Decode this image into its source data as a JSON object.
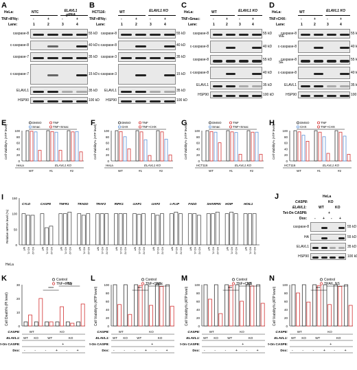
{
  "panels": {
    "A": {
      "letter": "A",
      "cell": "HeLa:",
      "groups": [
        "NTC",
        "ELAVL1 gRNA"
      ],
      "treat": "TNF+IFNγ:",
      "signs": [
        "-",
        "+",
        "-",
        "+"
      ],
      "lane_label": "Lane:",
      "lanes": [
        "1",
        "2",
        "3",
        "4"
      ],
      "rows": [
        "caspase-8",
        "c-caspase-8",
        "caspase-7",
        "c-caspase-7",
        "ELAVL1",
        "HSP90"
      ],
      "markers": [
        "55 kD",
        "40 kD",
        "35 kD",
        "15 kD",
        "35 kD",
        "100 kD"
      ]
    },
    "B": {
      "letter": "B",
      "cell": "HCT116:",
      "groups": [
        "WT",
        "ELAVL1 KO"
      ],
      "treat": "TNF+IFNγ:",
      "signs": [
        "-",
        "+",
        "-",
        "+"
      ],
      "lane_label": "Lane:",
      "lanes": [
        "1",
        "2",
        "3",
        "4"
      ],
      "rows": [
        "caspase-8",
        "c-caspase-8",
        "caspase-3",
        "c-caspase-3",
        "ELAVL1",
        "HSP90"
      ],
      "markers": [
        "55 kD",
        "40 kD",
        "35 kD",
        "15 kD",
        "35 kD",
        "100 kD"
      ]
    },
    "C": {
      "letter": "C",
      "cell": "HeLa:",
      "groups": [
        "WT",
        "ELAVL1 KO"
      ],
      "treat": "TNF+Smac:",
      "signs": [
        "-",
        "+",
        "-",
        "+"
      ],
      "lane_label": "Lane:",
      "lanes": [
        "1",
        "2",
        "3",
        "4"
      ],
      "rows": [
        "caspase-8",
        "c-caspase-8",
        "caspase-8",
        "c-caspase-8",
        "ELAVL1",
        "HSP90"
      ],
      "markers": [
        "55 kD",
        "40 kD",
        "55 kD",
        "40 kD",
        "35 kD",
        "100 kD"
      ],
      "exposures": [
        "WE",
        "SE"
      ]
    },
    "D": {
      "letter": "D",
      "cell": "HeLa:",
      "groups": [
        "WT",
        "ELAVL1 KO"
      ],
      "treat": "TNF+CHX:",
      "signs": [
        "-",
        "+",
        "-",
        "+"
      ],
      "lane_label": "Lane:",
      "lanes": [
        "1",
        "2",
        "3",
        "4"
      ],
      "rows": [
        "caspase-8",
        "c-caspase-8",
        "caspase-8",
        "c-caspase-8",
        "ELAVL1",
        "HSP90"
      ],
      "markers": [
        "55 kD",
        "40 kD",
        "55 kD",
        "40 kD",
        "35 kD",
        "100 kD"
      ],
      "exposures": [
        "WE",
        "SE"
      ]
    },
    "E": {
      "letter": "E",
      "ylabel": "Cell Viability% (ATP level)",
      "yticks": [
        "100",
        "80",
        "60",
        "40",
        "20",
        "0"
      ],
      "legend": [
        "DMSO",
        "TNF",
        "Smac",
        "TNF+Smac"
      ],
      "cell": "HeLa",
      "cond": [
        "WT",
        "#1",
        "#2"
      ],
      "ko": "ELAVL1 KO",
      "wt": "WT"
    },
    "F": {
      "letter": "F",
      "ylabel": "Cell Viability% (ATP level)",
      "yticks": [
        "100",
        "80",
        "60",
        "40",
        "20",
        "0"
      ],
      "legend": [
        "DMSO",
        "TNF",
        "CHX",
        "TNF+CHX"
      ],
      "cell": "HeLa",
      "cond": [
        "WT",
        "#1",
        "#2"
      ],
      "ko": "ELAVL1 KO",
      "wt": "WT"
    },
    "G": {
      "letter": "G",
      "ylabel": "Cell Viability% (ATP level)",
      "yticks": [
        "100",
        "80",
        "60",
        "40",
        "20",
        "0"
      ],
      "legend": [
        "DMSO",
        "TNF",
        "Smac",
        "TNF+Smac"
      ],
      "cell": "HCT116",
      "cond": [
        "WT",
        "#1",
        "#2"
      ],
      "ko": "ELAVL1 KO",
      "wt": "WT"
    },
    "H": {
      "letter": "H",
      "ylabel": "Cell Viability% (ATP level)",
      "yticks": [
        "100",
        "80",
        "60",
        "40",
        "20",
        "0"
      ],
      "legend": [
        "DMSO",
        "TNF",
        "CHX",
        "TNF+CHX"
      ],
      "cell": "HCT116",
      "cond": [
        "WT",
        "#1",
        "#2"
      ],
      "ko": "ELAVL1 KO",
      "wt": "WT"
    },
    "I": {
      "letter": "I",
      "ylabel": "Relative mRNA level (%)",
      "yticks": [
        "150",
        "100",
        "50",
        "0"
      ],
      "genes": [
        "CYLD",
        "CASP8",
        "TNFR1",
        "TRADD",
        "TRAF2",
        "RIPK1",
        "cIAP1",
        "cIAP2",
        "c-FLIP",
        "FADD",
        "SHARPIN",
        "HOIP",
        "HOIL1"
      ],
      "xcats": [
        "WT",
        "KO #1",
        "KO #2"
      ],
      "cell": "HeLa"
    },
    "J": {
      "letter": "J",
      "cell": "HeLa",
      "casp8": "CASP8:",
      "casp8_val": "KO",
      "elavl": "ELAVL1:",
      "elavl_vals": [
        "WT",
        "KO"
      ],
      "teton": "Tet-On CASP8:",
      "teton_val": "+",
      "dox": "Dox:",
      "dox_vals": [
        "-",
        "+",
        "-",
        "+"
      ],
      "rows": [
        "caspase-8",
        "HA",
        "ELAVL1",
        "HSP90"
      ],
      "markers": [
        "55 kD",
        "55 kD",
        "35 kD",
        "100 kD"
      ]
    },
    "K": {
      "letter": "K",
      "ylabel": "Cell Death% (PI level)",
      "yticks": [
        "30",
        "20",
        "10",
        "0"
      ],
      "legend": [
        "Control",
        "TNF+IFNγ"
      ],
      "sig": [
        "****",
        "NS"
      ]
    },
    "L": {
      "letter": "L",
      "ylabel": "Cell Viability% (ATP level)",
      "yticks": [
        "100",
        "80",
        "60",
        "40",
        "20",
        "0"
      ],
      "legend": [
        "Control",
        "TNF+Smac"
      ],
      "sig": [
        "***",
        "NS"
      ]
    },
    "M": {
      "letter": "M",
      "ylabel": "Cell Viability% (ATP level)",
      "yticks": [
        "100",
        "80",
        "60",
        "40",
        "20",
        "0"
      ],
      "legend": [
        "Control",
        "TNF+CHX"
      ],
      "sig": [
        "***",
        "NS"
      ]
    },
    "N": {
      "letter": "N",
      "ylabel": "Cell Viability% (ATP level)",
      "yticks": [
        "100",
        "80",
        "60",
        "40",
        "20",
        "0"
      ],
      "legend": [
        "Control",
        "TRAIL"
      ],
      "sig": [
        "***",
        "NS"
      ]
    },
    "bottom_table": {
      "casp8": "CASP8:",
      "elavl": "ELAVL1:",
      "teton": "Tet-On CASP8:",
      "dox": "Dox:",
      "wt": "WT",
      "ko": "KO",
      "plus": "+",
      "minus": "-"
    }
  },
  "colors": {
    "red": "#d32f2f",
    "black": "#333333",
    "blue": "#5a8fd6",
    "orange": "#e6963a"
  },
  "chart_data": [
    {
      "type": "bar",
      "panel": "E",
      "categories": [
        "HeLa WT",
        "ELAVL1 KO #1",
        "ELAVL1 KO #2"
      ],
      "series": [
        {
          "name": "DMSO",
          "values": [
            100,
            100,
            100
          ]
        },
        {
          "name": "TNF",
          "values": [
            98,
            97,
            96
          ]
        },
        {
          "name": "Smac",
          "values": [
            96,
            95,
            97
          ]
        },
        {
          "name": "TNF+Smac",
          "values": [
            35,
            35,
            30
          ]
        }
      ],
      "ylim": [
        0,
        100
      ]
    },
    {
      "type": "bar",
      "panel": "F",
      "categories": [
        "HeLa WT",
        "ELAVL1 KO #1",
        "ELAVL1 KO #2"
      ],
      "series": [
        {
          "name": "DMSO",
          "values": [
            100,
            100,
            100
          ]
        },
        {
          "name": "TNF",
          "values": [
            97,
            96,
            96
          ]
        },
        {
          "name": "CHX",
          "values": [
            80,
            70,
            72
          ]
        },
        {
          "name": "TNF+CHX",
          "values": [
            40,
            18,
            20
          ]
        }
      ],
      "ylim": [
        0,
        100
      ]
    },
    {
      "type": "bar",
      "panel": "G",
      "categories": [
        "HCT116 WT",
        "ELAVL1 KO #1",
        "ELAVL1 KO #2"
      ],
      "series": [
        {
          "name": "DMSO",
          "values": [
            100,
            100,
            100
          ]
        },
        {
          "name": "TNF",
          "values": [
            97,
            96,
            95
          ]
        },
        {
          "name": "Smac",
          "values": [
            95,
            94,
            95
          ]
        },
        {
          "name": "TNF+Smac",
          "values": [
            60,
            22,
            22
          ]
        }
      ],
      "ylim": [
        0,
        100
      ]
    },
    {
      "type": "bar",
      "panel": "H",
      "categories": [
        "HCT116 WT",
        "ELAVL1 KO #1",
        "ELAVL1 KO #2"
      ],
      "series": [
        {
          "name": "DMSO",
          "values": [
            100,
            100,
            100
          ]
        },
        {
          "name": "TNF",
          "values": [
            96,
            95,
            95
          ]
        },
        {
          "name": "CHX",
          "values": [
            85,
            80,
            82
          ]
        },
        {
          "name": "TNF+CHX",
          "values": [
            65,
            25,
            22
          ]
        }
      ],
      "ylim": [
        0,
        100
      ]
    },
    {
      "type": "bar",
      "panel": "I",
      "categories": [
        "CYLD",
        "CASP8",
        "TNFR1",
        "TRADD",
        "TRAF2",
        "RIPK1",
        "cIAP1",
        "cIAP2",
        "c-FLIP",
        "FADD",
        "SHARPIN",
        "HOIP",
        "HOIL1"
      ],
      "series": [
        {
          "name": "WT",
          "values": [
            100,
            100,
            100,
            100,
            100,
            100,
            100,
            100,
            100,
            100,
            100,
            100,
            100
          ]
        },
        {
          "name": "KO #1",
          "values": [
            95,
            55,
            100,
            95,
            100,
            100,
            98,
            95,
            105,
            100,
            100,
            105,
            100
          ]
        },
        {
          "name": "KO #2",
          "values": [
            95,
            60,
            105,
            100,
            100,
            100,
            100,
            100,
            100,
            95,
            105,
            100,
            100
          ]
        }
      ],
      "ylim": [
        0,
        150
      ]
    },
    {
      "type": "bar",
      "panel": "K",
      "categories": [
        "WT/WT",
        "WT/KO",
        "KO/WT Dox-",
        "KO/WT Dox+",
        "KO/KO Dox-",
        "KO/KO Dox+"
      ],
      "series": [
        {
          "name": "Control",
          "values": [
            3,
            3,
            3,
            3,
            3,
            3
          ]
        },
        {
          "name": "TNF+IFNγ",
          "values": [
            8,
            20,
            3,
            14,
            2,
            16
          ]
        }
      ],
      "ylim": [
        0,
        30
      ]
    },
    {
      "type": "bar",
      "panel": "L",
      "categories": [
        "WT/WT",
        "WT/KO",
        "KO/WT Dox-",
        "KO/WT Dox+",
        "KO/KO Dox-",
        "KO/KO Dox+"
      ],
      "series": [
        {
          "name": "Control",
          "values": [
            100,
            100,
            100,
            100,
            100,
            100
          ]
        },
        {
          "name": "TNF+Smac",
          "values": [
            52,
            28,
            98,
            50,
            96,
            48
          ]
        }
      ],
      "ylim": [
        0,
        100
      ]
    },
    {
      "type": "bar",
      "panel": "M",
      "categories": [
        "WT/WT",
        "WT/KO",
        "KO/WT Dox-",
        "KO/WT Dox+",
        "KO/KO Dox-",
        "KO/KO Dox+"
      ],
      "series": [
        {
          "name": "Control",
          "values": [
            100,
            100,
            100,
            100,
            100,
            100
          ]
        },
        {
          "name": "TNF+CHX",
          "values": [
            65,
            30,
            98,
            60,
            97,
            55
          ]
        }
      ],
      "ylim": [
        0,
        100
      ]
    },
    {
      "type": "bar",
      "panel": "N",
      "categories": [
        "WT/WT",
        "WT/KO",
        "KO/WT Dox-",
        "KO/WT Dox+",
        "KO/KO Dox-",
        "KO/KO Dox+"
      ],
      "series": [
        {
          "name": "Control",
          "values": [
            100,
            100,
            100,
            100,
            100,
            100
          ]
        },
        {
          "name": "TRAIL",
          "values": [
            80,
            58,
            98,
            52,
            96,
            50
          ]
        }
      ],
      "ylim": [
        0,
        100
      ]
    }
  ]
}
